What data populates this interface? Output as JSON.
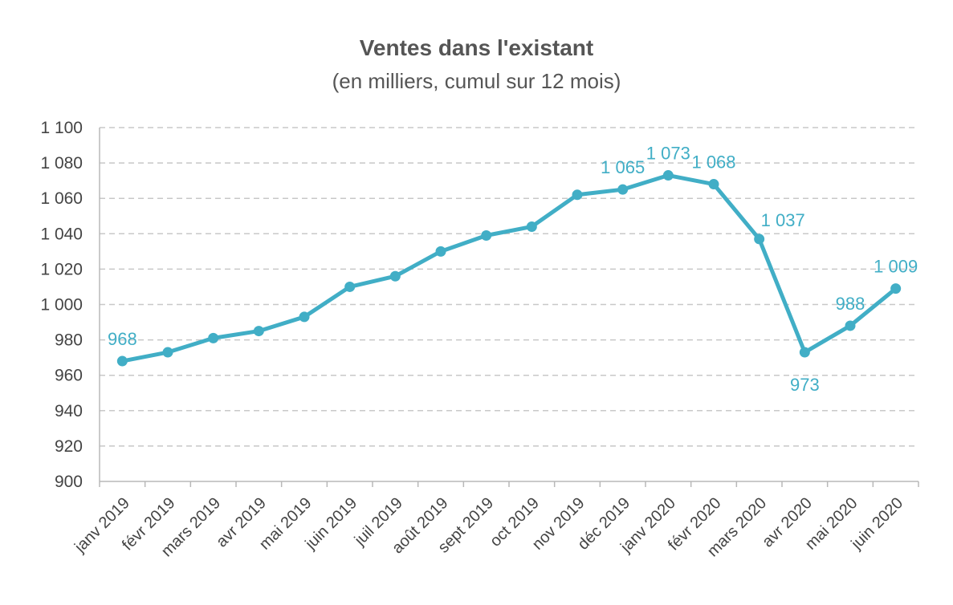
{
  "chart_data": {
    "type": "line",
    "title": "Ventes dans l'existant",
    "subtitle": "(en milliers, cumul sur 12 mois)",
    "xlabel": "",
    "ylabel": "",
    "ylim": [
      900,
      1100
    ],
    "yticks": [
      900,
      920,
      940,
      960,
      980,
      1000,
      1020,
      1040,
      1060,
      1080,
      1100
    ],
    "ytick_labels": [
      "900",
      "920",
      "940",
      "960",
      "980",
      "1 000",
      "1 020",
      "1 040",
      "1 060",
      "1 080",
      "1 100"
    ],
    "grid": true,
    "categories": [
      "janv 2019",
      "févr 2019",
      "mars 2019",
      "avr 2019",
      "mai 2019",
      "juin 2019",
      "juil 2019",
      "août 2019",
      "sept 2019",
      "oct 2019",
      "nov 2019",
      "déc 2019",
      "janv 2020",
      "févr 2020",
      "mars 2020",
      "avr 2020",
      "mai 2020",
      "juin 2020"
    ],
    "series": [
      {
        "values": [
          968,
          973,
          981,
          985,
          993,
          1010,
          1016,
          1030,
          1039,
          1044,
          1062,
          1065,
          1073,
          1068,
          1037,
          973,
          988,
          1009
        ],
        "color": "#41aec6"
      }
    ],
    "data_labels": [
      {
        "index": 0,
        "text": "968",
        "position": "above"
      },
      {
        "index": 11,
        "text": "1 065",
        "position": "above"
      },
      {
        "index": 12,
        "text": "1 073",
        "position": "above"
      },
      {
        "index": 13,
        "text": "1 068",
        "position": "above"
      },
      {
        "index": 14,
        "text": "1 037",
        "position": "above-right"
      },
      {
        "index": 15,
        "text": "973",
        "position": "below"
      },
      {
        "index": 16,
        "text": "988",
        "position": "above"
      },
      {
        "index": 17,
        "text": "1 009",
        "position": "above"
      }
    ]
  }
}
